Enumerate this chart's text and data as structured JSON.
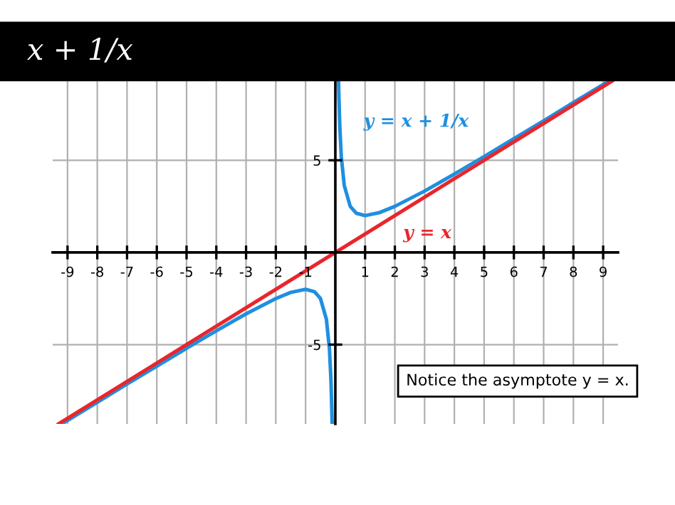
{
  "chart_data": {
    "type": "line",
    "title": "x + 1/x",
    "series": [
      {
        "name": "y = x + 1/x",
        "color": "#1f8fe0",
        "x": [
          -9.15,
          -9,
          -8,
          -7,
          -6,
          -5,
          -4,
          -3,
          -2,
          -1.5,
          -1,
          -0.7,
          -0.5,
          -0.3,
          -0.2,
          -0.15,
          -0.12,
          -0.108,
          null,
          0.108,
          0.12,
          0.15,
          0.2,
          0.3,
          0.5,
          0.7,
          1,
          1.5,
          2,
          3,
          4,
          5,
          6,
          7,
          8,
          9,
          9.15
        ],
        "values": [
          -9.26,
          -9.11,
          -8.13,
          -7.14,
          -6.17,
          -5.2,
          -4.25,
          -3.33,
          -2.5,
          -2.17,
          -2,
          -2.13,
          -2.5,
          -3.63,
          -5.2,
          -6.82,
          -8.45,
          -9.3,
          null,
          9.3,
          8.45,
          6.82,
          5.2,
          3.63,
          2.5,
          2.13,
          2,
          2.17,
          2.5,
          3.33,
          4.25,
          5.2,
          6.17,
          7.14,
          8.13,
          9.11,
          9.26
        ]
      },
      {
        "name": "y = x",
        "color": "#e8262c",
        "x": [
          -9.3,
          9.3
        ],
        "values": [
          -9.3,
          9.3
        ]
      }
    ],
    "xlim": [
      -9.5,
      9.5
    ],
    "ylim": [
      -9.3,
      9.3
    ],
    "xticks": [
      -9,
      -8,
      -7,
      -6,
      -5,
      -4,
      -3,
      -2,
      -1,
      1,
      2,
      3,
      4,
      5,
      6,
      7,
      8,
      9
    ],
    "yticks": [
      -5,
      5
    ],
    "grid": true,
    "annotations": [
      "Notice the asymptote y = x."
    ]
  }
}
